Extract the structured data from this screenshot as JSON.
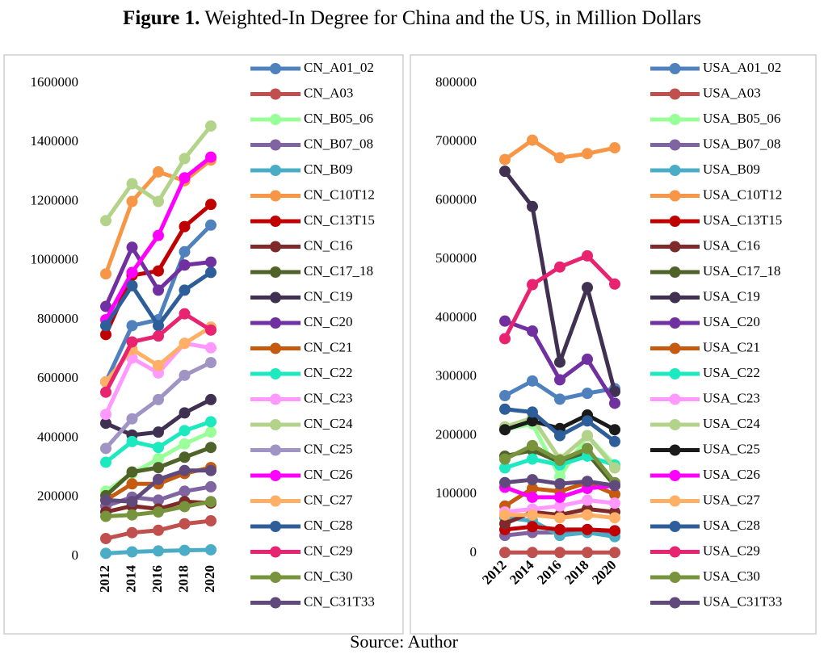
{
  "figure_label": "Figure 1.",
  "title": "Weighted-In Degree for China and the US, in Million Dollars",
  "source": "Source: Author",
  "chart_data": [
    {
      "type": "line",
      "categories": [
        "2012",
        "2014",
        "2016",
        "2018",
        "2020"
      ],
      "ylim": [
        0,
        1600000
      ],
      "yticks": [
        0,
        200000,
        400000,
        600000,
        800000,
        1000000,
        1200000,
        1400000,
        1600000
      ],
      "legend": "right",
      "series": [
        {
          "name": "CN_A01_02",
          "color": "#4f81bd",
          "values": [
            590000,
            780000,
            800000,
            1030000,
            1120000
          ]
        },
        {
          "name": "CN_A03",
          "color": "#c0504d",
          "values": [
            60000,
            80000,
            88000,
            110000,
            120000
          ]
        },
        {
          "name": "CN_B05_06",
          "color": "#99ff99",
          "values": [
            220000,
            280000,
            330000,
            380000,
            420000
          ]
        },
        {
          "name": "CN_B07_08",
          "color": "#8064a2",
          "values": [
            170000,
            200000,
            190000,
            220000,
            235000
          ]
        },
        {
          "name": "CN_B09",
          "color": "#4bacc6",
          "values": [
            10000,
            15000,
            18000,
            20000,
            22000
          ]
        },
        {
          "name": "CN_C10T12",
          "color": "#f79646",
          "values": [
            955000,
            1200000,
            1300000,
            1270000,
            1340000
          ]
        },
        {
          "name": "CN_C13T15",
          "color": "#c00000",
          "values": [
            750000,
            950000,
            965000,
            1115000,
            1190000
          ]
        },
        {
          "name": "CN_C16",
          "color": "#7f2a2a",
          "values": [
            150000,
            170000,
            160000,
            185000,
            180000
          ]
        },
        {
          "name": "CN_C17_18",
          "color": "#4f6228",
          "values": [
            205000,
            285000,
            300000,
            335000,
            368000
          ]
        },
        {
          "name": "CN_C19",
          "color": "#403152",
          "values": [
            450000,
            410000,
            420000,
            485000,
            530000
          ]
        },
        {
          "name": "CN_C20",
          "color": "#7030a0",
          "values": [
            845000,
            1045000,
            900000,
            985000,
            995000
          ]
        },
        {
          "name": "CN_C21",
          "color": "#c55a11",
          "values": [
            190000,
            245000,
            245000,
            280000,
            300000
          ]
        },
        {
          "name": "CN_C22",
          "color": "#1de9c0",
          "values": [
            318000,
            388000,
            368000,
            425000,
            455000
          ]
        },
        {
          "name": "CN_C23",
          "color": "#ff99ff",
          "values": [
            480000,
            670000,
            620000,
            720000,
            705000
          ]
        },
        {
          "name": "CN_C24",
          "color": "#b3d38a",
          "values": [
            1135000,
            1260000,
            1200000,
            1345000,
            1455000
          ]
        },
        {
          "name": "CN_C25",
          "color": "#a094c4",
          "values": [
            365000,
            465000,
            530000,
            612000,
            655000
          ]
        },
        {
          "name": "CN_C26",
          "color": "#ff00ff",
          "values": [
            800000,
            960000,
            1085000,
            1280000,
            1350000
          ]
        },
        {
          "name": "CN_C27",
          "color": "#ffb066",
          "values": [
            590000,
            700000,
            645000,
            720000,
            775000
          ]
        },
        {
          "name": "CN_C28",
          "color": "#2e5e9a",
          "values": [
            780000,
            915000,
            780000,
            900000,
            960000
          ]
        },
        {
          "name": "CN_C29",
          "color": "#e8236f",
          "values": [
            555000,
            725000,
            745000,
            820000,
            765000
          ]
        },
        {
          "name": "CN_C30",
          "color": "#77933c",
          "values": [
            135000,
            140000,
            150000,
            168000,
            185000
          ]
        },
        {
          "name": "CN_C31T33",
          "color": "#604a7b",
          "values": [
            190000,
            185000,
            260000,
            290000,
            290000
          ]
        }
      ]
    },
    {
      "type": "line",
      "categories": [
        "2012",
        "2014",
        "2016",
        "2018",
        "2020"
      ],
      "ylim": [
        0,
        800000
      ],
      "yticks": [
        0,
        100000,
        200000,
        300000,
        400000,
        500000,
        600000,
        700000,
        800000
      ],
      "legend": "right",
      "series": [
        {
          "name": "USA_A01_02",
          "color": "#4f81bd",
          "values": [
            268000,
            293000,
            262000,
            272000,
            280000
          ]
        },
        {
          "name": "USA_A03",
          "color": "#c0504d",
          "values": [
            1000,
            1000,
            1000,
            1000,
            1000
          ]
        },
        {
          "name": "USA_B05_06",
          "color": "#99ff99",
          "values": [
            210000,
            220000,
            130000,
            200000,
            150000
          ]
        },
        {
          "name": "USA_B07_08",
          "color": "#8064a2",
          "values": [
            30000,
            35000,
            35000,
            40000,
            35000
          ]
        },
        {
          "name": "USA_B09",
          "color": "#4bacc6",
          "values": [
            60000,
            55000,
            30000,
            35000,
            28000
          ]
        },
        {
          "name": "USA_C10T12",
          "color": "#f79646",
          "values": [
            670000,
            703000,
            673000,
            680000,
            690000
          ]
        },
        {
          "name": "USA_C13T15",
          "color": "#c00000",
          "values": [
            40000,
            45000,
            40000,
            40000,
            38000
          ]
        },
        {
          "name": "USA_C16",
          "color": "#7f2a2a",
          "values": [
            50000,
            70000,
            65000,
            75000,
            70000
          ]
        },
        {
          "name": "USA_C17_18",
          "color": "#4f6228",
          "values": [
            165000,
            175000,
            155000,
            170000,
            115000
          ]
        },
        {
          "name": "USA_C19",
          "color": "#403152",
          "values": [
            650000,
            590000,
            325000,
            452000,
            275000
          ]
        },
        {
          "name": "USA_C20",
          "color": "#7030a0",
          "values": [
            395000,
            378000,
            295000,
            330000,
            255000
          ]
        },
        {
          "name": "USA_C21",
          "color": "#c55a11",
          "values": [
            80000,
            110000,
            105000,
            120000,
            100000
          ]
        },
        {
          "name": "USA_C22",
          "color": "#1de9c0",
          "values": [
            145000,
            160000,
            150000,
            165000,
            150000
          ]
        },
        {
          "name": "USA_C23",
          "color": "#ff99ff",
          "values": [
            70000,
            75000,
            80000,
            90000,
            85000
          ]
        },
        {
          "name": "USA_C24",
          "color": "#b3d38a",
          "values": [
            215000,
            230000,
            160000,
            200000,
            145000
          ]
        },
        {
          "name": "USA_C25",
          "color": "#1a1a1a",
          "values": [
            210000,
            225000,
            212000,
            235000,
            210000
          ]
        },
        {
          "name": "USA_C26",
          "color": "#ff00ff",
          "values": [
            112000,
            95000,
            95000,
            110000,
            115000
          ]
        },
        {
          "name": "USA_C27",
          "color": "#ffb066",
          "values": [
            65000,
            65000,
            60000,
            65000,
            60000
          ]
        },
        {
          "name": "USA_C28",
          "color": "#2e5e9a",
          "values": [
            245000,
            240000,
            200000,
            225000,
            190000
          ]
        },
        {
          "name": "USA_C29",
          "color": "#e8236f",
          "values": [
            365000,
            457000,
            487000,
            506000,
            458000
          ]
        },
        {
          "name": "USA_C30",
          "color": "#77933c",
          "values": [
            160000,
            183000,
            158000,
            178000,
            120000
          ]
        },
        {
          "name": "USA_C31T33",
          "color": "#604a7b",
          "values": [
            120000,
            125000,
            118000,
            122000,
            115000
          ]
        }
      ]
    }
  ]
}
